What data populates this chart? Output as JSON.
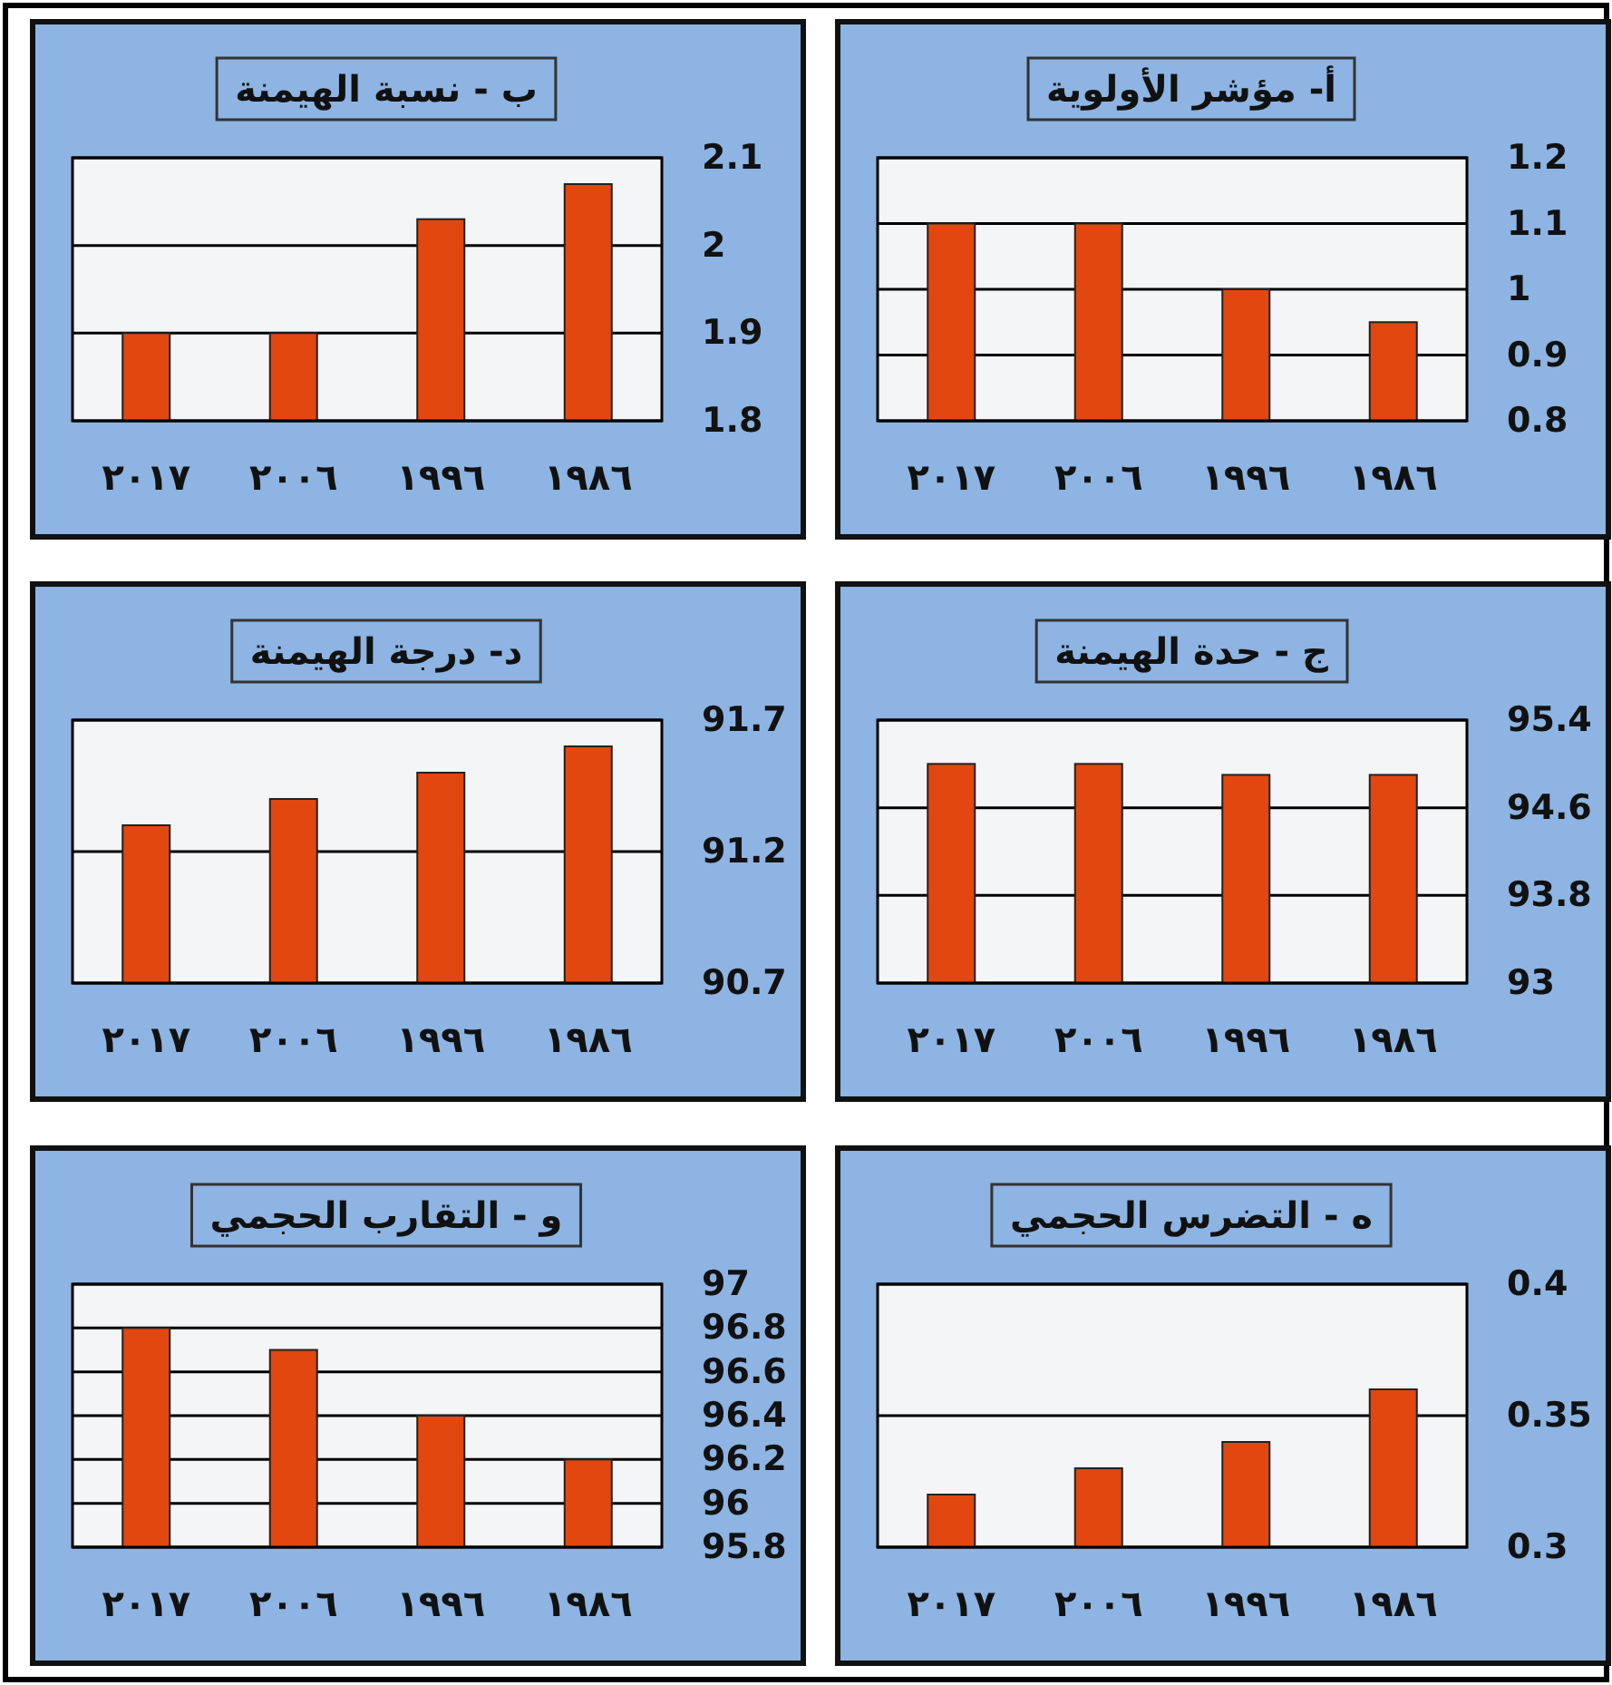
{
  "chart_data": [
    {
      "type": "bar",
      "title": "أ- مؤشر الأولوية",
      "categories": [
        "٢٠١٧",
        "٢٠٠٦",
        "١٩٩٦",
        "١٩٨٦"
      ],
      "values": [
        1.1,
        1.1,
        1.0,
        0.95
      ],
      "color": "#e2470f",
      "ylim": [
        0.8,
        1.2
      ],
      "yticks": [
        0.8,
        0.9,
        1,
        1.1,
        1.2
      ],
      "grid": "y"
    },
    {
      "type": "bar",
      "title": "ب - نسبة الهيمنة",
      "categories": [
        "٢٠١٧",
        "٢٠٠٦",
        "١٩٩٦",
        "١٩٨٦"
      ],
      "values": [
        1.9,
        1.9,
        2.03,
        2.07
      ],
      "color": "#e2470f",
      "ylim": [
        1.8,
        2.1
      ],
      "yticks": [
        1.8,
        1.9,
        2,
        2.1
      ],
      "grid": "y"
    },
    {
      "type": "bar",
      "title": "ج - حدة الهيمنة",
      "categories": [
        "٢٠١٧",
        "٢٠٠٦",
        "١٩٩٦",
        "١٩٨٦"
      ],
      "values": [
        95.0,
        95.0,
        94.9,
        94.9
      ],
      "color": "#e2470f",
      "ylim": [
        93,
        95.4
      ],
      "yticks": [
        93,
        93.8,
        94.6,
        95.4
      ],
      "grid": "y"
    },
    {
      "type": "bar",
      "title": "د- درجة الهيمنة",
      "categories": [
        "٢٠١٧",
        "٢٠٠٦",
        "١٩٩٦",
        "١٩٨٦"
      ],
      "values": [
        91.3,
        91.4,
        91.5,
        91.6
      ],
      "color": "#e2470f",
      "ylim": [
        90.7,
        91.7
      ],
      "yticks": [
        90.7,
        91.2,
        91.7
      ],
      "grid": "y"
    },
    {
      "type": "bar",
      "title": "ه - التضرس الحجمي",
      "categories": [
        "٢٠١٧",
        "٢٠٠٦",
        "١٩٩٦",
        "١٩٨٦"
      ],
      "values": [
        0.32,
        0.33,
        0.34,
        0.36
      ],
      "color": "#e2470f",
      "ylim": [
        0.3,
        0.4
      ],
      "yticks": [
        0.3,
        0.35,
        0.4
      ],
      "grid": "y"
    },
    {
      "type": "bar",
      "title": "و - التقارب الحجمي",
      "categories": [
        "٢٠١٧",
        "٢٠٠٦",
        "١٩٩٦",
        "١٩٨٦"
      ],
      "values": [
        96.8,
        96.7,
        96.4,
        96.2
      ],
      "color": "#e2470f",
      "ylim": [
        95.8,
        97
      ],
      "yticks": [
        95.8,
        96,
        96.2,
        96.4,
        96.6,
        96.8,
        97
      ],
      "grid": "y"
    }
  ]
}
